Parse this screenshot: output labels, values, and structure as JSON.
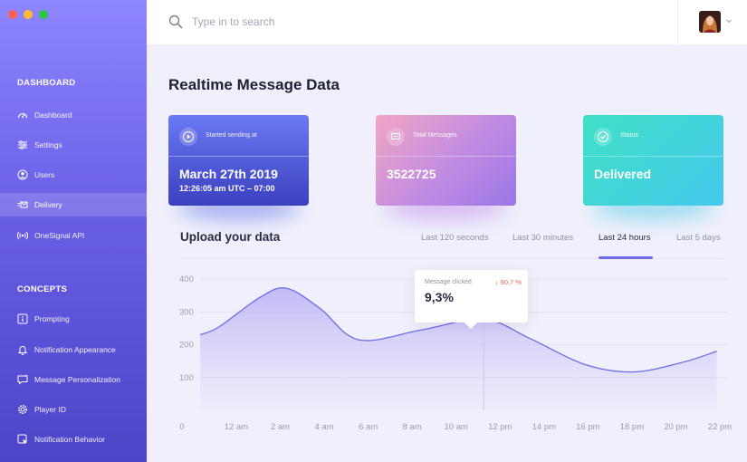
{
  "window": {
    "controls": [
      "#ff5f57",
      "#febc2e",
      "#28c840"
    ]
  },
  "search": {
    "placeholder": "Type in to search"
  },
  "sidebar": {
    "sections": [
      {
        "title": "DASHBOARD",
        "items": [
          {
            "label": "Dashboard",
            "icon": "dashboard-icon"
          },
          {
            "label": "Settings",
            "icon": "sliders-icon"
          },
          {
            "label": "Users",
            "icon": "user-icon"
          },
          {
            "label": "Delivery",
            "icon": "delivery-icon",
            "active": true
          },
          {
            "label": "OneSignal API",
            "icon": "broadcast-icon"
          }
        ]
      },
      {
        "title": "CONCEPTS",
        "items": [
          {
            "label": "Prompting",
            "icon": "info-icon"
          },
          {
            "label": "Notification Appearance",
            "icon": "bell-icon"
          },
          {
            "label": "Message Personalization",
            "icon": "message-icon"
          },
          {
            "label": "Player ID",
            "icon": "gear-icon"
          },
          {
            "label": "Notification Behavior",
            "icon": "cursor-icon"
          }
        ]
      }
    ]
  },
  "main": {
    "title": "Realtime Message Data",
    "cards": [
      {
        "label": "Started sending at",
        "value": "March 27th 2019",
        "sub": "12:26:05 am UTC – 07:00",
        "icon": "play-icon"
      },
      {
        "label": "Total Messages",
        "value": "3522725",
        "icon": "message-icon"
      },
      {
        "label": "Status",
        "value": "Delivered",
        "icon": "check-icon"
      }
    ],
    "upload_title": "Upload your data",
    "tabs": [
      {
        "label": "Last 120 seconds"
      },
      {
        "label": "Last 30 minutes"
      },
      {
        "label": "Last 24 hours",
        "active": true
      },
      {
        "label": "Last 5 days"
      }
    ],
    "tooltip": {
      "label": "Message clicked",
      "delta": "↓ 90,7 %",
      "value": "9,3%"
    }
  },
  "colors": {
    "accent": "#6f6ae6",
    "delta_negative": "#f0655b"
  },
  "chart_data": {
    "type": "area",
    "y_ticks": [
      "100",
      "200",
      "300",
      "400"
    ],
    "x_labels": [
      "0",
      "12 am",
      "2 am",
      "4 am",
      "6 am",
      "8 am",
      "10 am",
      "12 pm",
      "14 pm",
      "16 pm",
      "18 pm",
      "20 pm",
      "22 pm"
    ],
    "x": [
      0,
      0.8,
      2.5,
      3.6,
      5,
      6.6,
      9.2,
      11.8,
      13.7,
      16,
      18,
      20,
      21.5
    ],
    "values": [
      230,
      255,
      345,
      372,
      310,
      215,
      245,
      278,
      220,
      140,
      117,
      145,
      180
    ],
    "highlight_index": 7,
    "ylim": [
      0,
      450
    ],
    "grid": true
  }
}
